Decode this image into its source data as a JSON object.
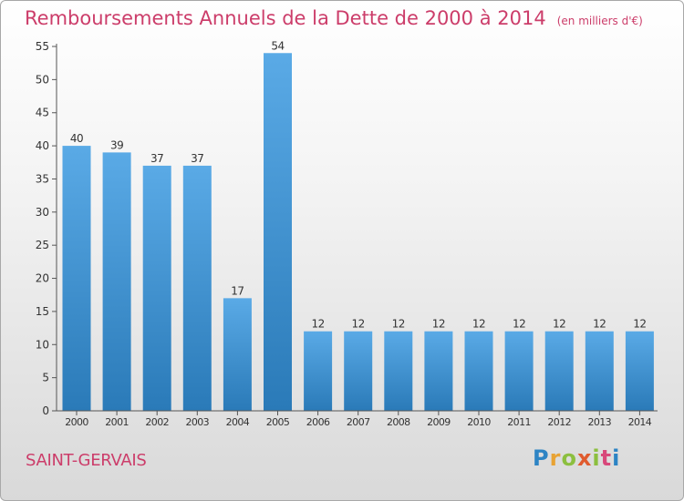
{
  "title": "Remboursements Annuels de la Dette de 2000 à 2014",
  "unit": "(en milliers d'€)",
  "location": "SAINT-GERVAIS",
  "logo": {
    "letters": [
      "P",
      "r",
      "o",
      "x",
      "i",
      "t",
      "i"
    ]
  },
  "colors": {
    "title": "#cc3d6a",
    "bar_top": "#5aaae6",
    "bar_bottom": "#2a7ab8",
    "axis": "#555555"
  },
  "chart_data": {
    "type": "bar",
    "categories": [
      "2000",
      "2001",
      "2002",
      "2003",
      "2004",
      "2005",
      "2006",
      "2007",
      "2008",
      "2009",
      "2010",
      "2011",
      "2012",
      "2013",
      "2014"
    ],
    "values": [
      40,
      39,
      37,
      37,
      17,
      54,
      12,
      12,
      12,
      12,
      12,
      12,
      12,
      12,
      12
    ],
    "ylim": [
      0,
      55
    ],
    "yticks": [
      0,
      5,
      10,
      15,
      20,
      25,
      30,
      35,
      40,
      45,
      50,
      55
    ],
    "grid": false,
    "data_labels": true
  }
}
